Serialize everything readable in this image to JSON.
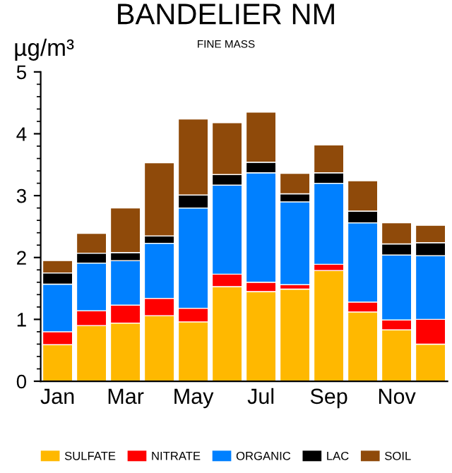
{
  "chart_data": {
    "type": "bar",
    "title": "BANDELIER NM",
    "subtitle": "FINE MASS",
    "ylabel": "µg/m³",
    "stacked": true,
    "categories": [
      "Jan",
      null,
      "Mar",
      null,
      "May",
      null,
      "Jul",
      null,
      "Sep",
      null,
      "Nov",
      null
    ],
    "series": [
      {
        "name": "SULFATE",
        "color": "#ffb800",
        "values": [
          0.59,
          0.9,
          0.94,
          1.06,
          0.96,
          1.53,
          1.45,
          1.49,
          1.79,
          1.12,
          0.83,
          0.6
        ]
      },
      {
        "name": "NITRATE",
        "color": "#ff0000",
        "values": [
          0.21,
          0.24,
          0.29,
          0.28,
          0.22,
          0.2,
          0.15,
          0.07,
          0.1,
          0.16,
          0.16,
          0.4
        ]
      },
      {
        "name": "ORGANIC",
        "color": "#0080ff",
        "values": [
          0.77,
          0.77,
          0.72,
          0.89,
          1.62,
          1.44,
          1.77,
          1.34,
          1.31,
          1.28,
          1.05,
          1.03
        ]
      },
      {
        "name": "LAC",
        "color": "#000000",
        "values": [
          0.18,
          0.16,
          0.13,
          0.12,
          0.21,
          0.17,
          0.17,
          0.13,
          0.17,
          0.19,
          0.18,
          0.21
        ]
      },
      {
        "name": "SOIL",
        "color": "#8f4a0a",
        "values": [
          0.2,
          0.32,
          0.72,
          1.18,
          1.23,
          0.84,
          0.81,
          0.33,
          0.45,
          0.49,
          0.34,
          0.28
        ]
      }
    ],
    "ylim": [
      0,
      5
    ],
    "yticks": [
      0,
      1,
      2,
      3,
      4,
      5
    ],
    "grid": false,
    "legend": "bottom"
  }
}
